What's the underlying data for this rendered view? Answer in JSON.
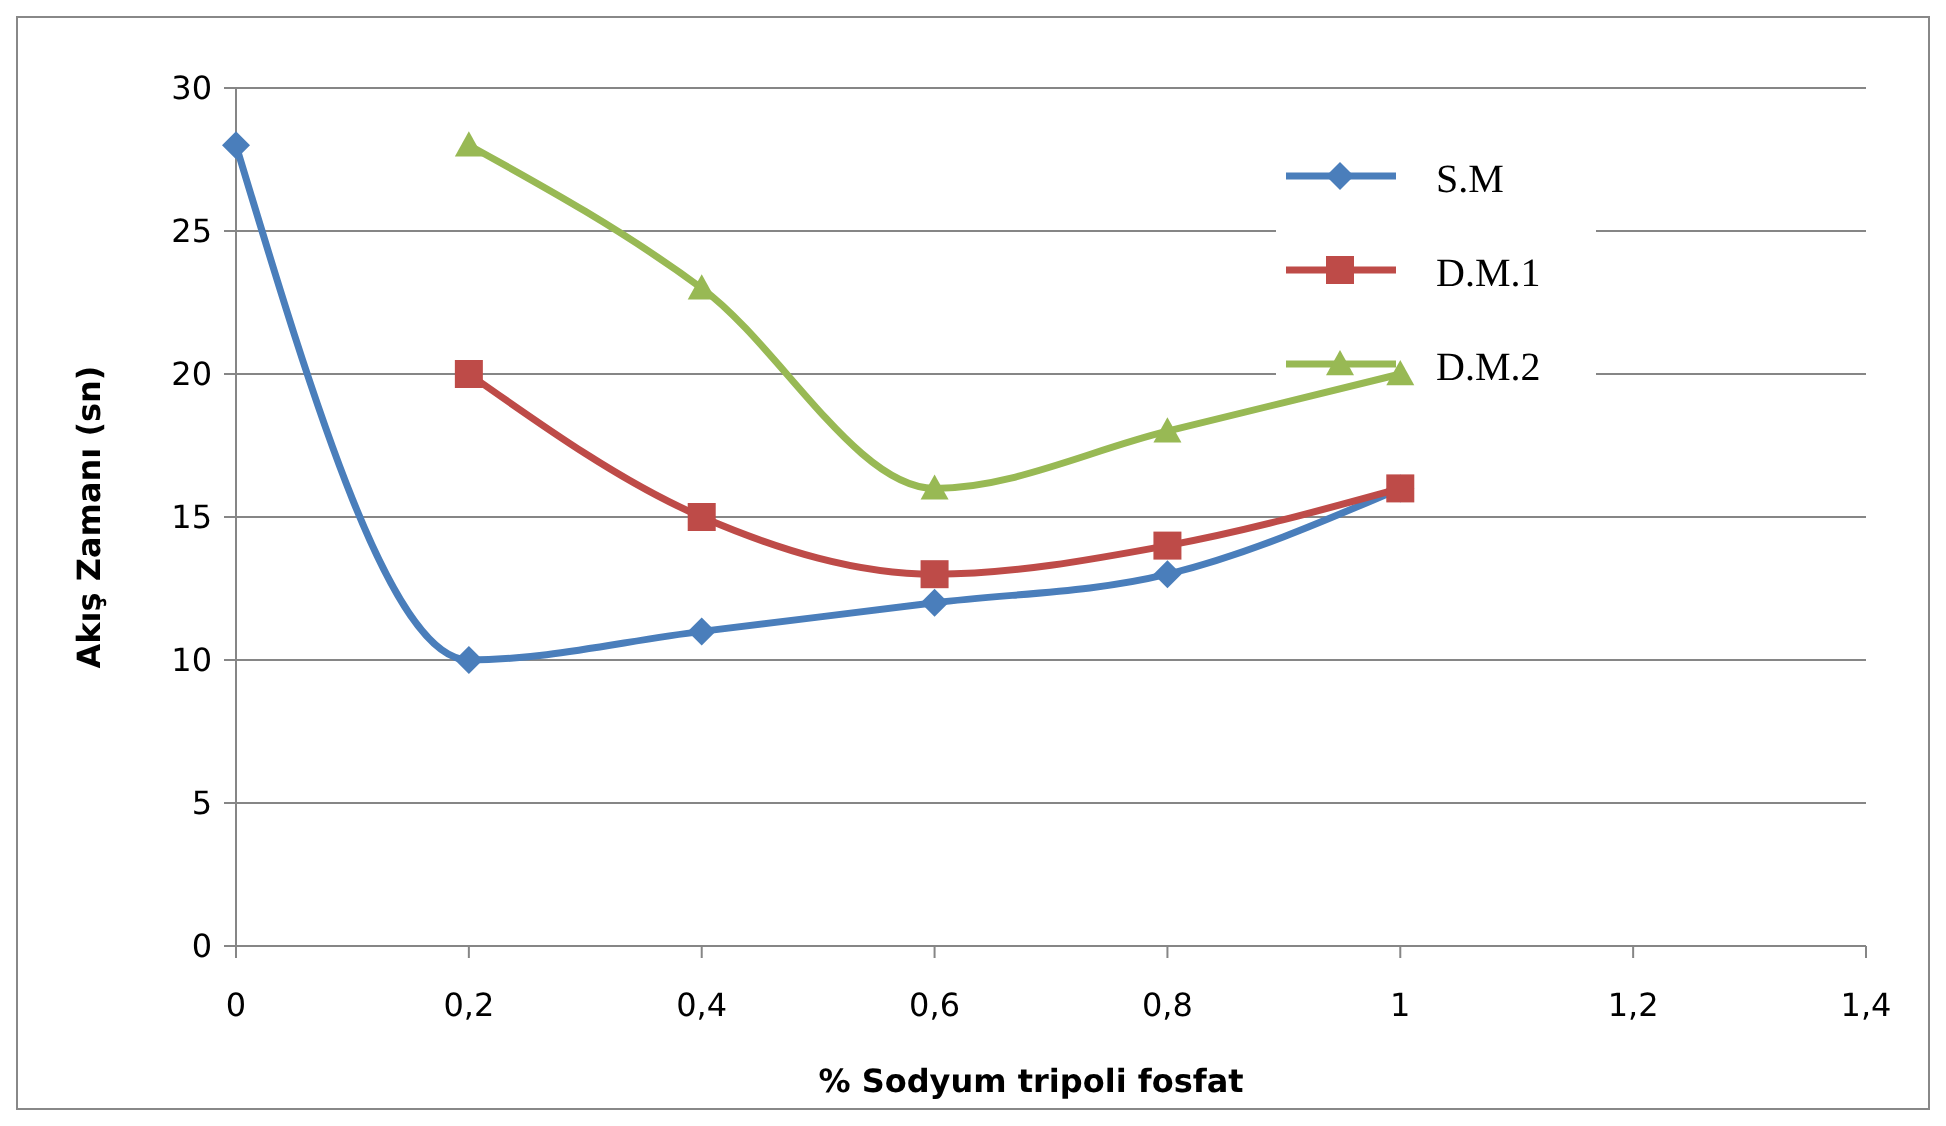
{
  "chart_data": {
    "type": "line",
    "xlabel": "% Sodyum tripoli fosfat",
    "ylabel": "Akış Zamanı (sn)",
    "xlim": [
      0,
      1.4
    ],
    "xticks": [
      0,
      {
        "value": 0.2,
        "label": "0,2"
      },
      {
        "value": 0.4,
        "label": "0,4"
      },
      {
        "value": 0.6,
        "label": "0,6"
      },
      {
        "value": 0.8,
        "label": "0,8"
      },
      1,
      {
        "value": 1.2,
        "label": "1,2"
      },
      {
        "value": 1.4,
        "label": "1,4"
      }
    ],
    "ylim": [
      0,
      30
    ],
    "yticks": [
      0,
      5,
      10,
      15,
      20,
      25,
      30
    ],
    "grid": "y",
    "legend": "top right",
    "series": [
      {
        "name": "S.M",
        "color": "#4a7ebb",
        "marker": "diamond",
        "x": [
          0,
          0.2,
          0.4,
          0.6,
          0.8,
          1
        ],
        "values": [
          28,
          10,
          11,
          12,
          13,
          16
        ]
      },
      {
        "name": "D.M.1",
        "color": "#be4b48",
        "marker": "square",
        "x": [
          0.2,
          0.4,
          0.6,
          0.8,
          1
        ],
        "values": [
          20,
          15,
          13,
          14,
          16
        ]
      },
      {
        "name": "D.M.2",
        "color": "#98b954",
        "marker": "triangle",
        "x": [
          0.2,
          0.4,
          0.6,
          0.8,
          1
        ],
        "values": [
          28,
          23,
          16,
          18,
          20
        ]
      }
    ]
  }
}
